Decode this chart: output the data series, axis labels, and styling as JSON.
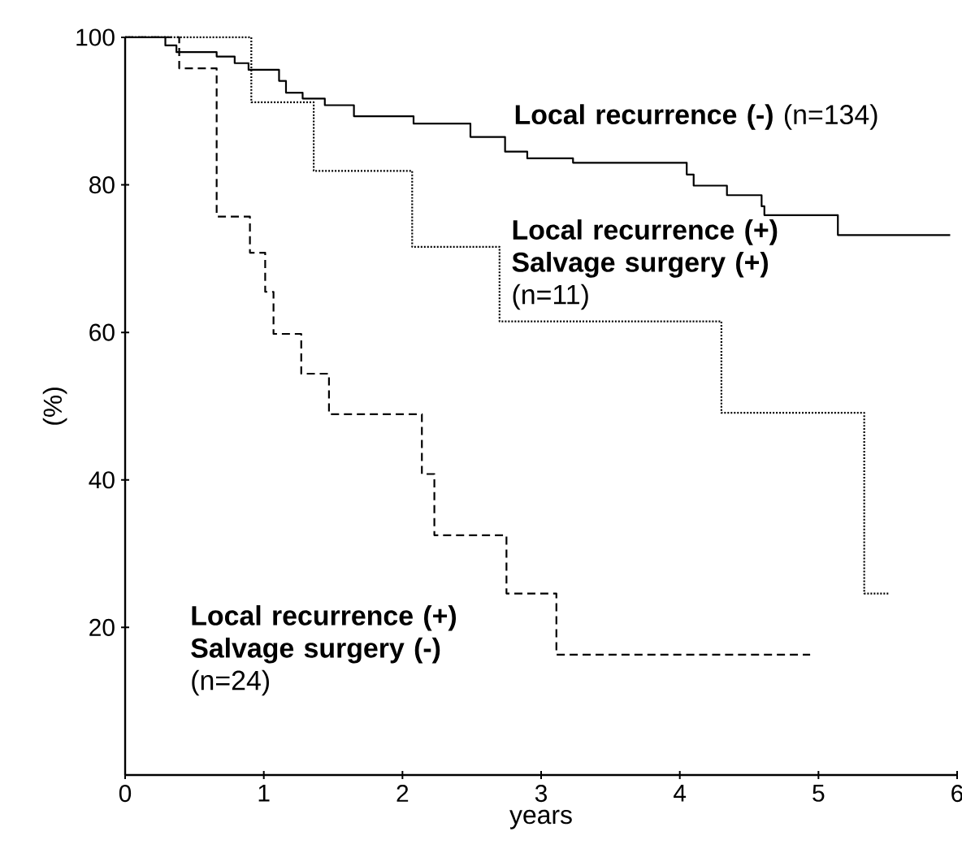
{
  "chart_data": {
    "type": "step",
    "xlabel": "years",
    "ylabel": "(%)",
    "xlim": [
      0,
      6
    ],
    "xticks": [
      0,
      1,
      2,
      3,
      4,
      5,
      6
    ],
    "ylim": [
      0,
      100
    ],
    "yticks": [
      20,
      40,
      60,
      80,
      100
    ],
    "series": [
      {
        "name": "**Local recurrence (-)** (n=134)",
        "color": "#000000",
        "line_style": "solid",
        "x": [
          0,
          0.29,
          0.37,
          0.66,
          0.79,
          0.89,
          1.11,
          1.16,
          1.28,
          1.44,
          1.65,
          2.08,
          2.49,
          2.74,
          2.9,
          3.23,
          4.05,
          4.1,
          4.34,
          4.59,
          4.61,
          5.14,
          5.95
        ],
        "values": [
          100,
          98.9,
          98,
          97.4,
          96.5,
          95.6,
          94.1,
          92.5,
          91.7,
          90.8,
          89.3,
          88.3,
          86.5,
          84.5,
          83.6,
          83,
          81.4,
          79.9,
          78.6,
          77.1,
          75.9,
          73.2,
          73.2
        ]
      },
      {
        "name": "**Local recurrence (+) Salvage surgery (+)** (n=11)",
        "color": "#000000",
        "line_style": "dotted",
        "x": [
          0,
          0.91,
          1.36,
          2.07,
          2.7,
          4.3,
          5.33,
          5.51
        ],
        "values": [
          100,
          91.2,
          81.9,
          71.6,
          61.5,
          49.1,
          24.6,
          24.6
        ]
      },
      {
        "name": "**Local recurrence (+) Salvage surgery (-)** (n=24)",
        "color": "#000000",
        "line_style": "dashed",
        "x": [
          0,
          0.39,
          0.66,
          0.9,
          1.01,
          1.07,
          1.27,
          1.47,
          2.14,
          2.23,
          2.75,
          3.11,
          4.94
        ],
        "values": [
          100,
          95.8,
          75.7,
          70.8,
          65.5,
          59.8,
          54.4,
          48.9,
          40.8,
          32.5,
          24.6,
          16.3,
          16.3
        ]
      }
    ]
  }
}
